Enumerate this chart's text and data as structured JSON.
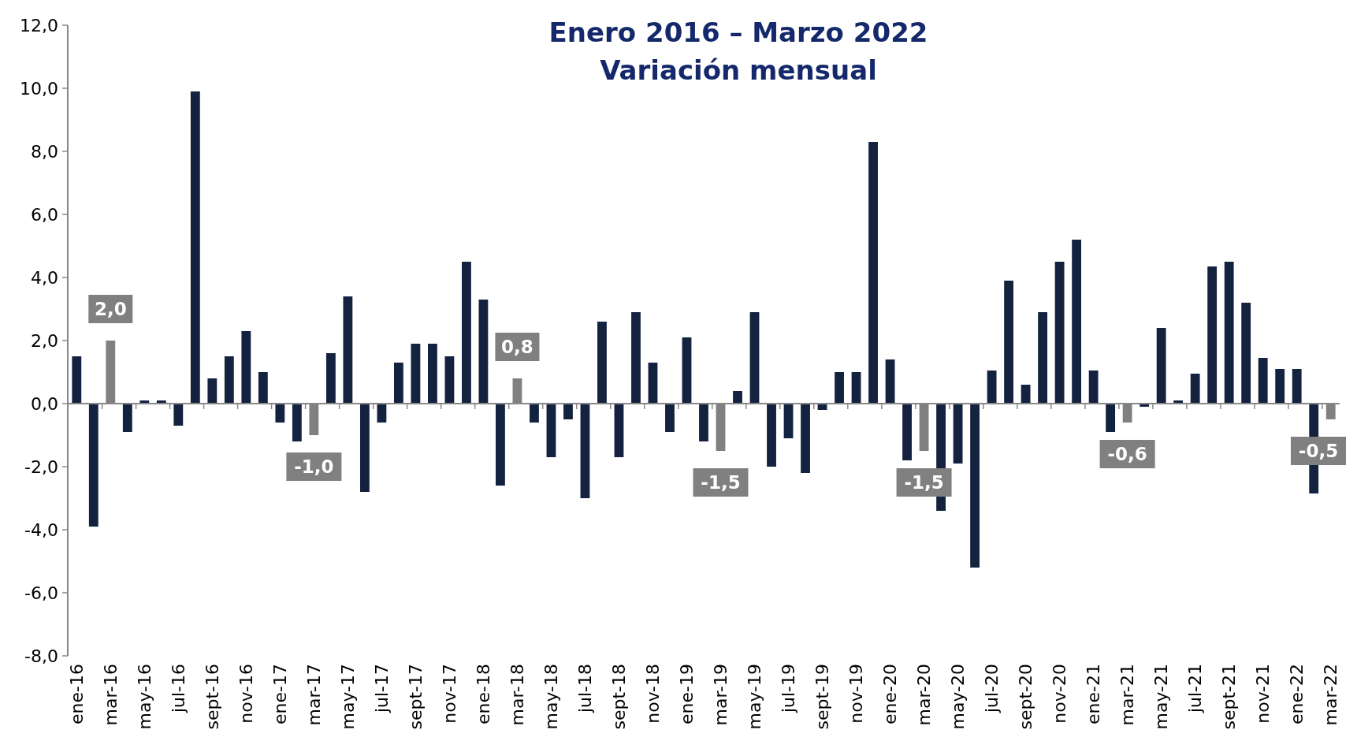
{
  "chart_data": {
    "type": "bar",
    "title": "Enero 2016 – Marzo 2022",
    "subtitle": "Variación mensual",
    "categories": [
      "ene-16",
      null,
      "mar-16",
      null,
      "may-16",
      null,
      "jul-16",
      null,
      "sept-16",
      null,
      "nov-16",
      null,
      "ene-17",
      null,
      "mar-17",
      null,
      "may-17",
      null,
      "jul-17",
      null,
      "sept-17",
      null,
      "nov-17",
      null,
      "ene-18",
      null,
      "mar-18",
      null,
      "may-18",
      null,
      "jul-18",
      null,
      "sept-18",
      null,
      "nov-18",
      null,
      "ene-19",
      null,
      "mar-19",
      null,
      "may-19",
      null,
      "jul-19",
      null,
      "sept-19",
      null,
      "nov-19",
      null,
      "ene-20",
      null,
      "mar-20",
      null,
      "may-20",
      null,
      "jul-20",
      null,
      "sept-20",
      null,
      "nov-20",
      null,
      "ene-21",
      null,
      "mar-21",
      null,
      "may-21",
      null,
      "jul-21",
      null,
      "sept-21",
      null,
      "nov-21",
      null,
      "ene-22",
      null,
      "mar-22"
    ],
    "values": [
      1.5,
      -3.9,
      2.0,
      -0.9,
      0.1,
      0.1,
      -0.7,
      9.9,
      0.8,
      1.5,
      2.3,
      1.0,
      -0.6,
      -1.2,
      -1.0,
      1.6,
      3.4,
      -2.8,
      -0.6,
      1.3,
      1.9,
      1.9,
      1.5,
      4.5,
      3.3,
      -2.6,
      0.8,
      -0.6,
      -1.7,
      -0.5,
      -3.0,
      2.6,
      -1.7,
      2.9,
      1.3,
      -0.9,
      2.1,
      -1.2,
      -1.5,
      0.4,
      2.9,
      -2.0,
      -1.1,
      -2.2,
      -0.2,
      1.0,
      1.0,
      8.3,
      1.4,
      -1.8,
      -1.5,
      -3.4,
      -1.9,
      -5.2,
      1.05,
      3.9,
      0.6,
      2.9,
      4.5,
      5.2,
      1.05,
      -0.9,
      -0.6,
      -0.1,
      2.4,
      0.1,
      0.95,
      4.35,
      4.5,
      3.2,
      1.45,
      1.1,
      1.1,
      -2.85,
      -0.5
    ],
    "colors": [
      "#13233f",
      "#13233f",
      "#808080",
      "#13233f",
      "#13233f",
      "#13233f",
      "#13233f",
      "#13233f",
      "#13233f",
      "#13233f",
      "#13233f",
      "#13233f",
      "#13233f",
      "#13233f",
      "#808080",
      "#13233f",
      "#13233f",
      "#13233f",
      "#13233f",
      "#13233f",
      "#13233f",
      "#13233f",
      "#13233f",
      "#13233f",
      "#13233f",
      "#13233f",
      "#808080",
      "#13233f",
      "#13233f",
      "#13233f",
      "#13233f",
      "#13233f",
      "#13233f",
      "#13233f",
      "#13233f",
      "#13233f",
      "#13233f",
      "#13233f",
      "#808080",
      "#13233f",
      "#13233f",
      "#13233f",
      "#13233f",
      "#13233f",
      "#13233f",
      "#13233f",
      "#13233f",
      "#13233f",
      "#13233f",
      "#13233f",
      "#808080",
      "#13233f",
      "#13233f",
      "#13233f",
      "#13233f",
      "#13233f",
      "#13233f",
      "#13233f",
      "#13233f",
      "#13233f",
      "#13233f",
      "#13233f",
      "#808080",
      "#13233f",
      "#13233f",
      "#13233f",
      "#13233f",
      "#13233f",
      "#13233f",
      "#13233f",
      "#13233f",
      "#13233f",
      "#13233f",
      "#13233f",
      "#808080"
    ],
    "value_labels": [
      null,
      null,
      "2,0",
      null,
      null,
      null,
      null,
      null,
      null,
      null,
      null,
      null,
      null,
      null,
      "-1,0",
      null,
      null,
      null,
      null,
      null,
      null,
      null,
      null,
      null,
      null,
      null,
      "0,8",
      null,
      null,
      null,
      null,
      null,
      null,
      null,
      null,
      null,
      null,
      null,
      "-1,5",
      null,
      null,
      null,
      null,
      null,
      null,
      null,
      null,
      null,
      null,
      null,
      "-1,5",
      null,
      null,
      null,
      null,
      null,
      null,
      null,
      null,
      null,
      null,
      null,
      "-0,6",
      null,
      null,
      null,
      null,
      null,
      null,
      null,
      null,
      null,
      null,
      null,
      "-0,5"
    ],
    "ylim": [
      -8,
      12
    ],
    "yticks": [
      {
        "value": -8,
        "label": "-8,0"
      },
      {
        "value": -6,
        "label": "-6,0"
      },
      {
        "value": -4,
        "label": "-4,0"
      },
      {
        "value": -2,
        "label": "-2,0"
      },
      {
        "value": 0,
        "label": "0,0"
      },
      {
        "value": 2,
        "label": "2,0"
      },
      {
        "value": 4,
        "label": "4,0"
      },
      {
        "value": 6,
        "label": "6,0"
      },
      {
        "value": 8,
        "label": "8,0"
      },
      {
        "value": 10,
        "label": "10,0"
      },
      {
        "value": 12,
        "label": "12,0"
      }
    ],
    "tick_labels": "xy"
  }
}
